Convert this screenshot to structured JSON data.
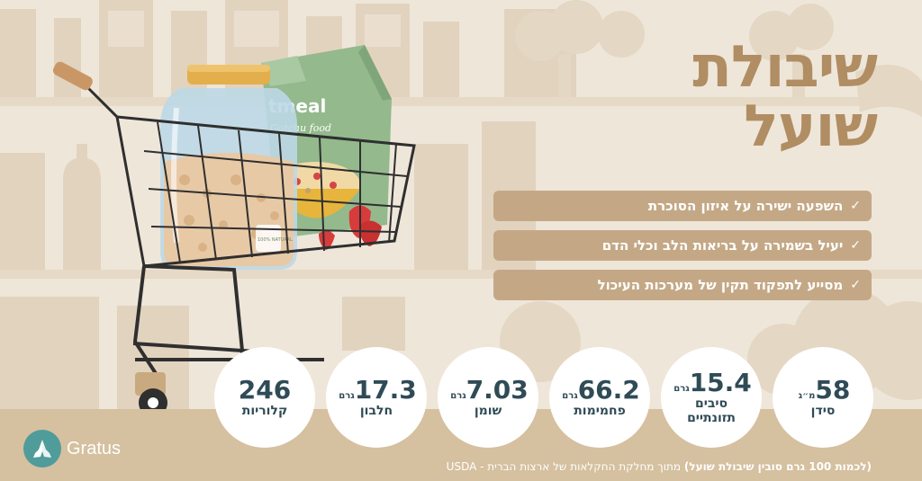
{
  "title": {
    "line1": "שיבולת",
    "line2": "שועל"
  },
  "benefits": [
    {
      "text": "השפעה ישירה על איזון הסוכרת",
      "icon": "check-icon"
    },
    {
      "text": "יעיל בשמירה על בריאות הלב וכלי הדם",
      "icon": "check-icon"
    },
    {
      "text": "מסייע לתפקוד תקין של מערכות העיכול",
      "icon": "check-icon"
    }
  ],
  "check_glyph": "✓",
  "nutrients": [
    {
      "value": "58",
      "unit": "מ״ג",
      "label": "סידן"
    },
    {
      "value": "15.4",
      "unit": "גרם",
      "label": "סיבים תזונתיים"
    },
    {
      "value": "66.2",
      "unit": "גרם",
      "label": "פחמימות"
    },
    {
      "value": "7.03",
      "unit": "גרם",
      "label": "שומן"
    },
    {
      "value": "17.3",
      "unit": "גרם",
      "label": "חלבון"
    },
    {
      "value": "246",
      "unit": "",
      "label": "קלוריות"
    }
  ],
  "jar_label": {
    "brand": "tmeal",
    "sub": "Gotchu food",
    "badge": "100% NATURAL"
  },
  "brand": {
    "name": "Gratus",
    "icon": "praying-hands-icon"
  },
  "source": {
    "bold": "(לכמות 100 גרם סובין שיבולת שועל)",
    "rest": " מתוך מחלקת החקלאות של ארצות הברית - USDA"
  },
  "colors": {
    "background": "#efe6da",
    "title": "#b08d62",
    "pill": "#c4a886",
    "band": "#d5c09f",
    "circle_text": "#2f4b56",
    "logo": "#4f9c9b"
  }
}
